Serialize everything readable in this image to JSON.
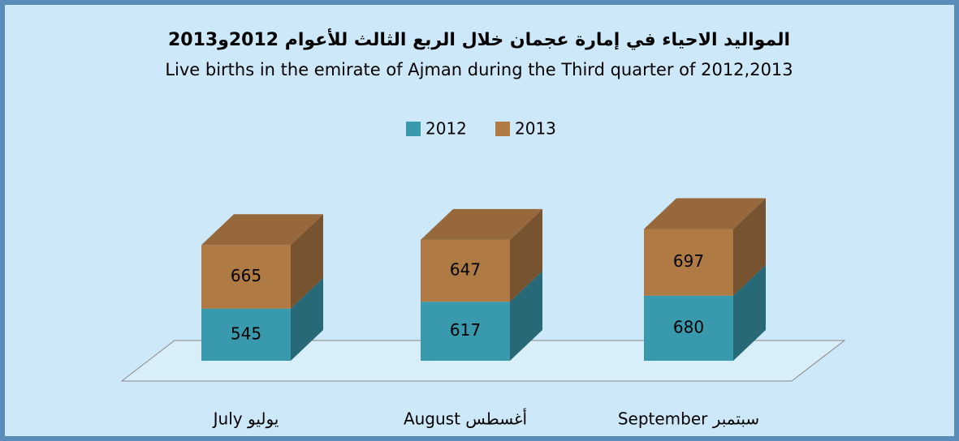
{
  "chart_data": {
    "type": "bar3d_stacked",
    "title": "المواليد الاحياء في إمارة عجمان  خلال الربع الثالث للأعوام 2012و2013",
    "subtitle": "Live births in the emirate of Ajman during the Third quarter of 2012,2013",
    "categories": [
      "July يوليو",
      "August أغسطس",
      "September سبتمبر"
    ],
    "series": [
      {
        "name": "2012",
        "color": "#3a9aad",
        "values": [
          545,
          617,
          680
        ]
      },
      {
        "name": "2013",
        "color": "#b07a45",
        "values": [
          665,
          647,
          697
        ]
      }
    ],
    "legend": "top"
  }
}
